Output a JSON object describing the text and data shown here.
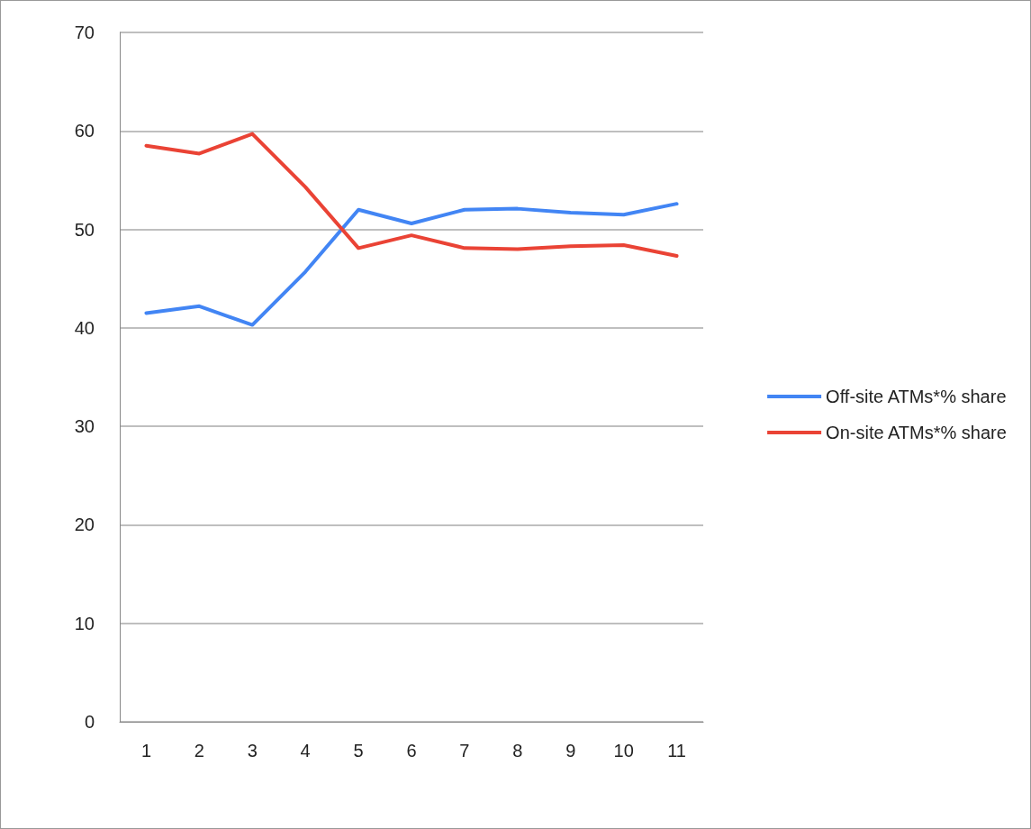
{
  "chart_data": {
    "type": "line",
    "categories": [
      "1",
      "2",
      "3",
      "4",
      "5",
      "6",
      "7",
      "8",
      "9",
      "10",
      "11"
    ],
    "series": [
      {
        "name": "Off-site ATMs*% share",
        "color": "#4285f4",
        "values": [
          41.5,
          42.2,
          40.3,
          45.7,
          52.0,
          50.6,
          52.0,
          52.1,
          51.7,
          51.5,
          52.6
        ]
      },
      {
        "name": "On-site ATMs*% share",
        "color": "#ea4335",
        "values": [
          58.5,
          57.7,
          59.7,
          54.3,
          48.1,
          49.4,
          48.1,
          48.0,
          48.3,
          48.4,
          47.3
        ]
      }
    ],
    "ylim": [
      0,
      70
    ],
    "yticks": [
      0,
      10,
      20,
      30,
      40,
      50,
      60,
      70
    ],
    "grid": "y",
    "legend": "right",
    "marker": "none",
    "line_style": "solid"
  }
}
